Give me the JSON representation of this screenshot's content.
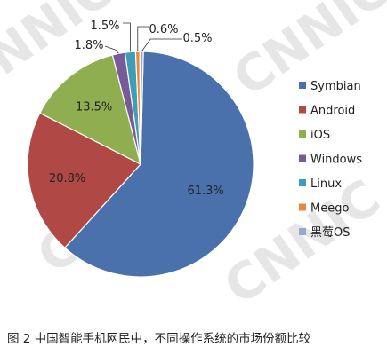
{
  "chart_data": {
    "type": "pie",
    "categories": [
      "Symbian",
      "Android",
      "iOS",
      "Windows",
      "Linux",
      "Meego",
      "黑莓OS"
    ],
    "values": [
      61.3,
      20.8,
      13.5,
      1.8,
      1.5,
      0.6,
      0.5
    ],
    "labels": [
      "61.3%",
      "20.8%",
      "13.5%",
      "1.8%",
      "1.5%",
      "0.6%",
      "0.5%"
    ],
    "colors": [
      "#4a71ac",
      "#b04845",
      "#8fae4f",
      "#785a98",
      "#3f9db5",
      "#e8883a",
      "#93a9cf"
    ],
    "legend": "right"
  },
  "caption": "图 2 中国智能手机网民中，不同操作系统的市场份额比较",
  "watermark": "CNNIC"
}
